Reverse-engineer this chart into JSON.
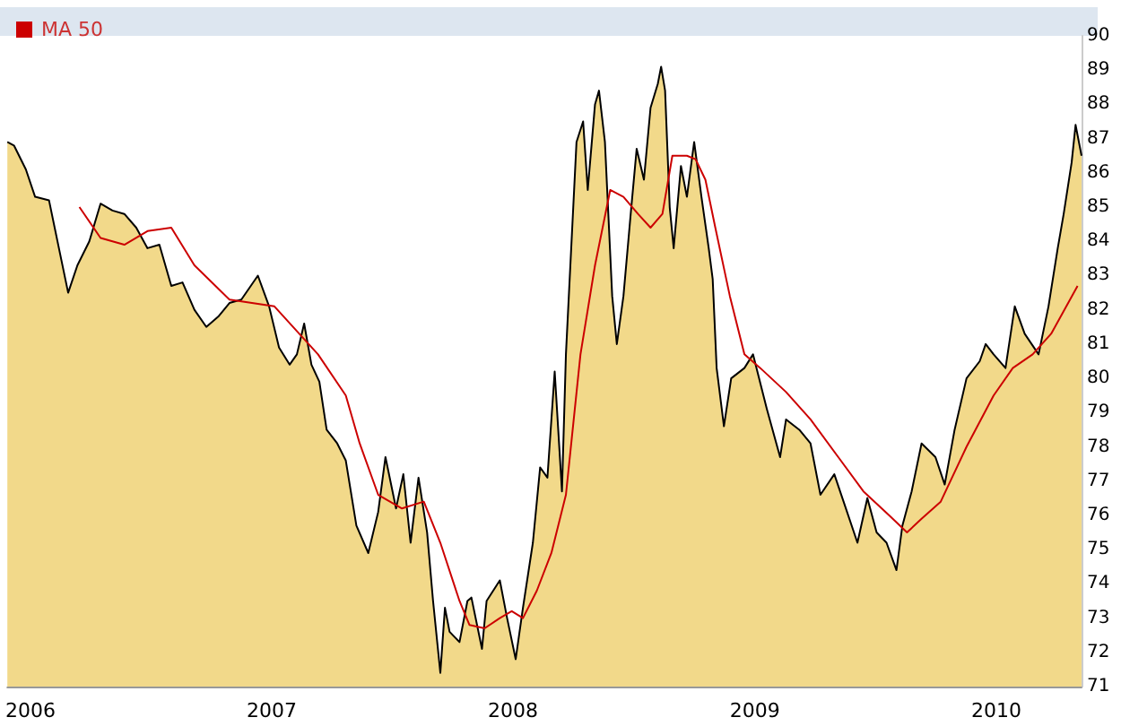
{
  "chart_data": {
    "type": "area",
    "legend": "top left",
    "grid": false,
    "xlim": [
      "2005-11-27",
      "2010-05-10"
    ],
    "xticks": [
      {
        "value": "2006-01-01",
        "label": "2006"
      },
      {
        "value": "2007-01-01",
        "label": "2007"
      },
      {
        "value": "2008-01-01",
        "label": "2008"
      },
      {
        "value": "2009-01-01",
        "label": "2009"
      },
      {
        "value": "2010-01-01",
        "label": "2010"
      }
    ],
    "ylim": [
      71,
      90
    ],
    "yticks": [
      71,
      72,
      73,
      74,
      75,
      76,
      77,
      78,
      79,
      80,
      81,
      82,
      83,
      84,
      85,
      86,
      87,
      88,
      89,
      90
    ],
    "series": [
      {
        "color": "#f2d98a",
        "x": [
          "2005-11-27",
          "2005-12-07",
          "2005-12-25",
          "2006-01-08",
          "2006-01-29",
          "2006-02-13",
          "2006-02-27",
          "2006-03-13",
          "2006-03-31",
          "2006-04-17",
          "2006-05-05",
          "2006-05-23",
          "2006-06-10",
          "2006-06-27",
          "2006-07-15",
          "2006-08-02",
          "2006-08-19",
          "2006-09-06",
          "2006-09-24",
          "2006-10-12",
          "2006-10-29",
          "2006-11-16",
          "2006-12-11",
          "2006-12-28",
          "2007-01-12",
          "2007-01-28",
          "2007-02-08",
          "2007-02-19",
          "2007-03-02",
          "2007-03-14",
          "2007-03-25",
          "2007-04-10",
          "2007-04-23",
          "2007-05-09",
          "2007-05-27",
          "2007-06-11",
          "2007-06-22",
          "2007-07-08",
          "2007-07-19",
          "2007-07-30",
          "2007-08-11",
          "2007-08-24",
          "2007-09-02",
          "2007-09-13",
          "2007-09-20",
          "2007-09-27",
          "2007-10-12",
          "2007-10-24",
          "2007-10-30",
          "2007-11-15",
          "2007-11-22",
          "2007-12-12",
          "2007-12-23",
          "2008-01-05",
          "2008-01-16",
          "2008-01-31",
          "2008-02-11",
          "2008-02-22",
          "2008-03-04",
          "2008-03-15",
          "2008-03-21",
          "2008-04-06",
          "2008-04-16",
          "2008-04-23",
          "2008-05-04",
          "2008-05-10",
          "2008-05-19",
          "2008-05-30",
          "2008-06-06",
          "2008-06-16",
          "2008-06-27",
          "2008-07-06",
          "2008-07-17",
          "2008-07-27",
          "2008-08-07",
          "2008-08-12",
          "2008-08-18",
          "2008-08-25",
          "2008-08-31",
          "2008-09-11",
          "2008-09-20",
          "2008-10-01",
          "2008-10-12",
          "2008-10-23",
          "2008-10-29",
          "2008-11-04",
          "2008-11-15",
          "2008-11-26",
          "2008-12-16",
          "2008-12-29",
          "2009-01-19",
          "2009-02-08",
          "2009-02-17",
          "2009-03-09",
          "2009-03-26",
          "2009-04-10",
          "2009-05-01",
          "2009-05-15",
          "2009-06-05",
          "2009-06-20",
          "2009-07-04",
          "2009-07-19",
          "2009-08-03",
          "2009-08-12",
          "2009-08-26",
          "2009-09-10",
          "2009-10-01",
          "2009-10-15",
          "2009-10-30",
          "2009-11-17",
          "2009-12-07",
          "2009-12-16",
          "2009-12-28",
          "2010-01-15",
          "2010-01-29",
          "2010-02-13",
          "2010-03-06",
          "2010-03-21",
          "2010-04-04",
          "2010-04-13",
          "2010-04-25",
          "2010-05-01",
          "2010-05-10"
        ],
        "values": [
          86.9,
          86.8,
          86.1,
          85.3,
          85.2,
          83.8,
          82.5,
          83.3,
          84.0,
          85.1,
          84.9,
          84.8,
          84.4,
          83.8,
          83.9,
          82.7,
          82.8,
          82.0,
          81.5,
          81.8,
          82.2,
          82.3,
          83.0,
          82.1,
          80.9,
          80.4,
          80.7,
          81.6,
          80.4,
          79.9,
          78.5,
          78.1,
          77.6,
          75.7,
          74.9,
          76.1,
          77.7,
          76.2,
          77.2,
          75.2,
          77.1,
          75.5,
          73.5,
          71.4,
          73.3,
          72.6,
          72.3,
          73.5,
          73.6,
          72.1,
          73.5,
          74.1,
          73.0,
          71.8,
          73.3,
          75.2,
          77.4,
          77.1,
          80.2,
          76.7,
          80.7,
          86.9,
          87.5,
          85.5,
          88.0,
          88.4,
          86.9,
          82.4,
          81.0,
          82.4,
          84.8,
          86.7,
          85.8,
          87.9,
          88.6,
          89.1,
          88.4,
          85.0,
          83.8,
          86.2,
          85.3,
          86.9,
          85.3,
          83.8,
          82.9,
          80.3,
          78.6,
          80.0,
          80.3,
          80.7,
          79.1,
          77.7,
          78.8,
          78.5,
          78.1,
          76.6,
          77.2,
          76.4,
          75.2,
          76.5,
          75.5,
          75.2,
          74.4,
          75.7,
          76.7,
          78.1,
          77.7,
          76.9,
          78.5,
          80.0,
          80.5,
          81.0,
          80.7,
          80.3,
          82.1,
          81.3,
          80.7,
          82.1,
          83.8,
          84.8,
          86.3,
          87.4,
          86.5
        ]
      },
      {
        "type": "line",
        "name": "MA 50",
        "color": "#cc0000",
        "x": [
          "2006-03-16",
          "2006-04-17",
          "2006-05-23",
          "2006-06-27",
          "2006-08-02",
          "2006-09-06",
          "2006-10-29",
          "2007-01-05",
          "2007-03-12",
          "2007-04-23",
          "2007-05-14",
          "2007-06-11",
          "2007-07-17",
          "2007-08-19",
          "2007-09-13",
          "2007-10-12",
          "2007-10-27",
          "2007-11-19",
          "2007-12-12",
          "2007-12-30",
          "2008-01-16",
          "2008-02-06",
          "2008-02-28",
          "2008-03-21",
          "2008-04-12",
          "2008-05-04",
          "2008-05-27",
          "2008-06-16",
          "2008-07-08",
          "2008-07-27",
          "2008-08-14",
          "2008-08-29",
          "2008-09-20",
          "2008-10-03",
          "2008-10-18",
          "2008-11-02",
          "2008-11-24",
          "2008-12-16",
          "2009-01-09",
          "2009-02-17",
          "2009-03-26",
          "2009-05-07",
          "2009-06-14",
          "2009-07-23",
          "2009-08-19",
          "2009-09-10",
          "2009-10-09",
          "2009-11-17",
          "2009-12-28",
          "2010-01-26",
          "2010-02-25",
          "2010-03-25",
          "2010-05-04"
        ],
        "values": [
          85.0,
          84.1,
          83.9,
          84.3,
          84.4,
          83.3,
          82.3,
          82.1,
          80.7,
          79.5,
          78.1,
          76.6,
          76.2,
          76.4,
          75.2,
          73.5,
          72.8,
          72.7,
          73.0,
          73.2,
          73.0,
          73.8,
          74.9,
          76.6,
          80.7,
          83.3,
          85.5,
          85.3,
          84.8,
          84.4,
          84.8,
          86.5,
          86.5,
          86.4,
          85.8,
          84.4,
          82.4,
          80.7,
          80.3,
          79.6,
          78.8,
          77.7,
          76.7,
          76.0,
          75.5,
          75.9,
          76.4,
          78.0,
          79.5,
          80.3,
          80.7,
          81.3,
          82.7
        ]
      }
    ]
  }
}
